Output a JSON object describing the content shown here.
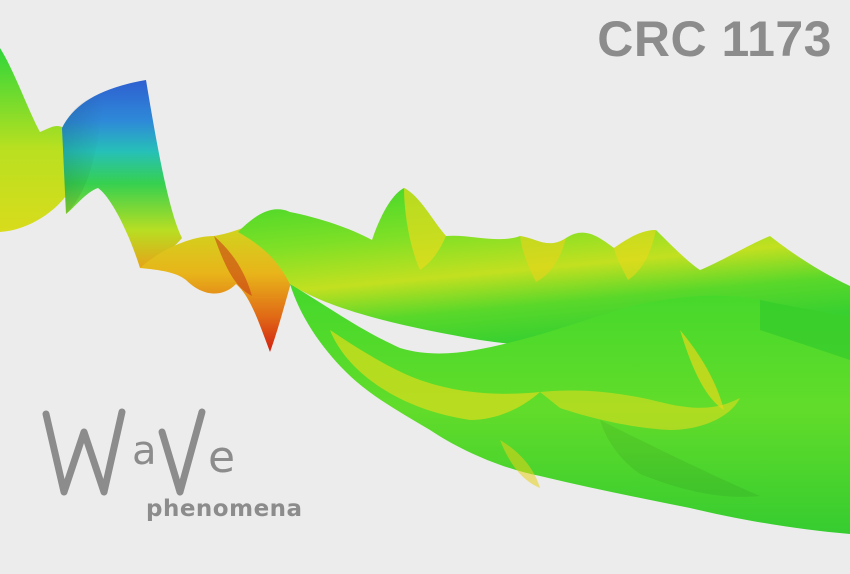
{
  "header": {
    "title": "CRC 1173"
  },
  "logo": {
    "word": "WaVe",
    "subtitle": "phenomena"
  },
  "colors": {
    "background": "#ececec",
    "text_gray": "#8c8c8c",
    "surface_green": "#3fd82a",
    "surface_yellow": "#e4df1a",
    "surface_blue": "#2e6fd6",
    "surface_red": "#d62312"
  }
}
